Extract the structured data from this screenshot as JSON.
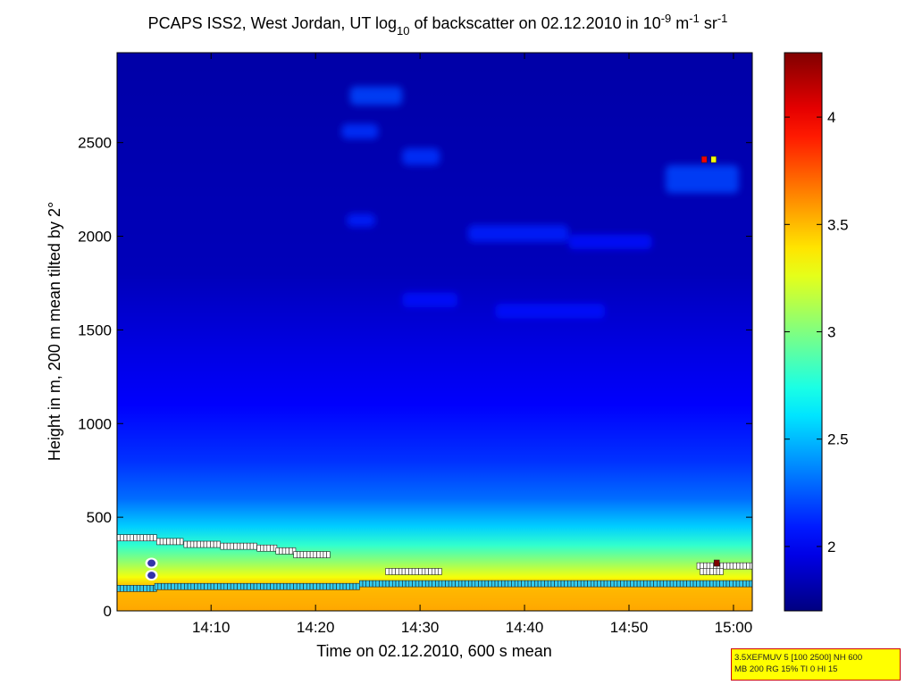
{
  "chart_data": {
    "type": "heatmap",
    "title_parts": {
      "prefix": "PCAPS ISS2, West Jordan, UT log",
      "sub": "10",
      "middle": " of backscatter on 02.12.2010 in 10",
      "exp1": "-9",
      "unit_m": " m",
      "exp2": "-1",
      "unit_sr": " sr",
      "exp3": "-1"
    },
    "xlabel": "Time on 02.12.2010, 600 s mean",
    "ylabel": "Height in m, 200 m mean tilted by 2°",
    "x_ticks": [
      "14:10",
      "14:20",
      "14:30",
      "14:40",
      "14:50",
      "15:00"
    ],
    "x_tick_minutes": [
      10,
      20,
      30,
      40,
      50,
      60
    ],
    "xlim_minutes": [
      1,
      61.8
    ],
    "y_ticks": [
      "0",
      "500",
      "1000",
      "1500",
      "2000",
      "2500"
    ],
    "y_tick_values": [
      0,
      500,
      1000,
      1500,
      2000,
      2500
    ],
    "ylim": [
      0,
      2980
    ],
    "colorbar": {
      "ticks": [
        "2",
        "2.5",
        "3",
        "3.5",
        "4"
      ],
      "tick_values": [
        2,
        2.5,
        3,
        3.5,
        4
      ],
      "range": [
        1.7,
        4.3
      ],
      "colormap": "jet"
    },
    "background_profile": [
      {
        "height": 0,
        "value": 3.55
      },
      {
        "height": 130,
        "value": 3.5
      },
      {
        "height": 180,
        "value": 3.3
      },
      {
        "height": 260,
        "value": 3.05
      },
      {
        "height": 350,
        "value": 2.8
      },
      {
        "height": 450,
        "value": 2.55
      },
      {
        "height": 600,
        "value": 2.3
      },
      {
        "height": 800,
        "value": 2.15
      },
      {
        "height": 1100,
        "value": 2.02
      },
      {
        "height": 1400,
        "value": 1.95
      },
      {
        "height": 1800,
        "value": 1.85
      },
      {
        "height": 2980,
        "value": 1.8
      }
    ],
    "cloud_patches": [
      {
        "t0": 23.3,
        "t1": 28.3,
        "h0": 2700,
        "h1": 2800,
        "value": 2.2
      },
      {
        "t0": 22.5,
        "t1": 26.0,
        "h0": 2520,
        "h1": 2600,
        "value": 2.15
      },
      {
        "t0": 28.3,
        "t1": 31.9,
        "h0": 2380,
        "h1": 2470,
        "value": 2.15
      },
      {
        "t0": 53.5,
        "t1": 60.5,
        "h0": 2230,
        "h1": 2380,
        "value": 2.2
      },
      {
        "t0": 23.0,
        "t1": 25.7,
        "h0": 2050,
        "h1": 2120,
        "value": 2.1
      },
      {
        "t0": 34.6,
        "t1": 44.2,
        "h0": 1970,
        "h1": 2060,
        "value": 2.1
      },
      {
        "t0": 44.2,
        "t1": 52.2,
        "h0": 1930,
        "h1": 2010,
        "value": 2.05
      },
      {
        "t0": 28.3,
        "t1": 33.6,
        "h0": 1620,
        "h1": 1700,
        "value": 2.05
      },
      {
        "t0": 37.2,
        "t1": 47.7,
        "h0": 1560,
        "h1": 1640,
        "value": 2.05
      }
    ],
    "markers": {
      "upper_layer": [
        {
          "t0": 1.0,
          "t1": 4.8,
          "h": 390
        },
        {
          "t0": 4.8,
          "t1": 7.4,
          "h": 370
        },
        {
          "t0": 7.4,
          "t1": 10.9,
          "h": 355
        },
        {
          "t0": 10.9,
          "t1": 14.4,
          "h": 345
        },
        {
          "t0": 14.4,
          "t1": 16.2,
          "h": 335
        },
        {
          "t0": 16.2,
          "t1": 17.9,
          "h": 320
        },
        {
          "t0": 17.9,
          "t1": 21.4,
          "h": 300
        },
        {
          "t0": 26.7,
          "t1": 31.9,
          "h": 210
        },
        {
          "t0": 56.5,
          "t1": 61.8,
          "h": 240
        },
        {
          "t0": 56.8,
          "t1": 58.8,
          "h": 210
        }
      ],
      "lower_layer": [
        {
          "t0": 1.0,
          "t1": 4.6,
          "h": 120
        },
        {
          "t0": 4.6,
          "t1": 24.2,
          "h": 130
        },
        {
          "t0": 24.2,
          "t1": 61.8,
          "h": 145
        }
      ],
      "circles": [
        {
          "t": 4.3,
          "h": 255
        },
        {
          "t": 4.3,
          "h": 190
        }
      ],
      "hot_points": [
        {
          "t": 57.2,
          "h": 2410,
          "value": 4.0
        },
        {
          "t": 58.1,
          "h": 2410,
          "value": 3.3
        },
        {
          "t": 58.4,
          "h": 255,
          "value": 4.3
        }
      ]
    }
  },
  "info_box": {
    "line1": "3.5XEFMUV 5 [100 2500] NH 600",
    "line2": "MB 200 RG 15% TI 0 HI 15"
  }
}
